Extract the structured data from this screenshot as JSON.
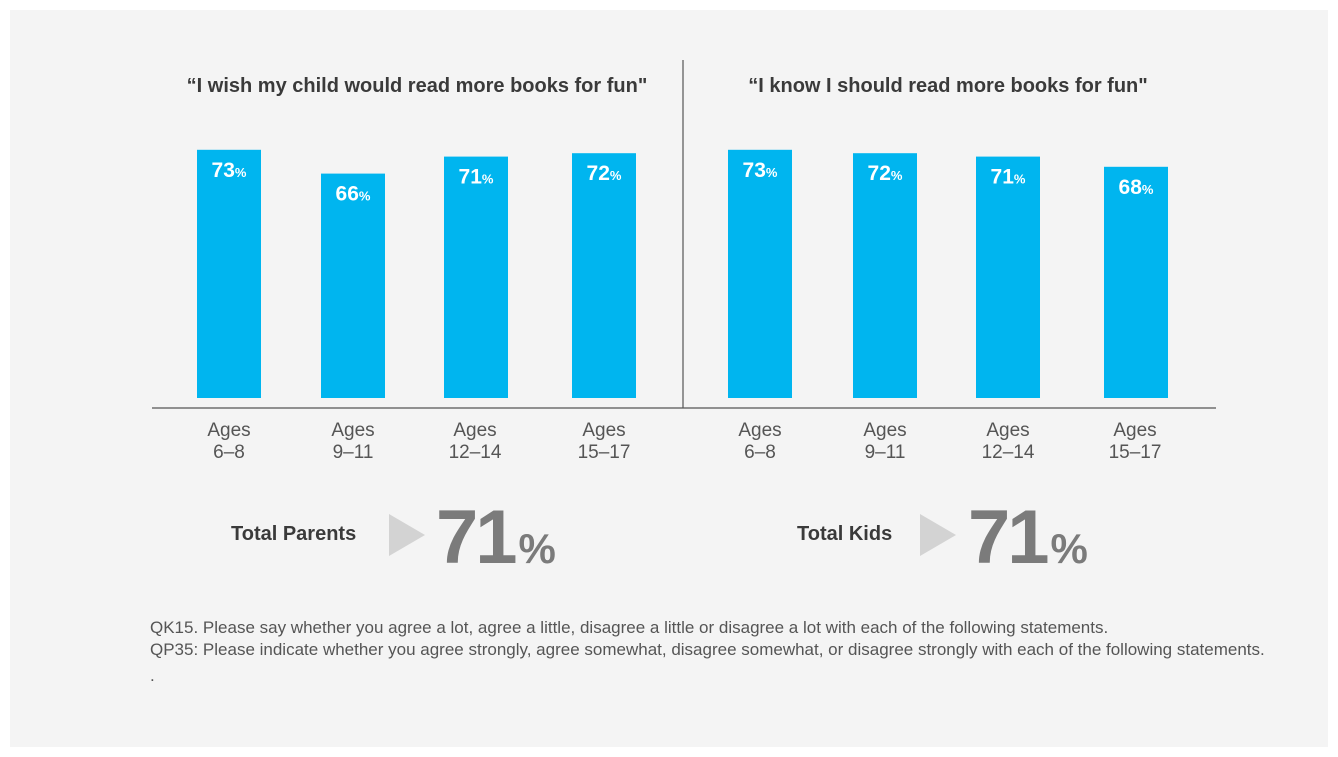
{
  "colors": {
    "bar": "#00b5ef",
    "bar_label": "#ffffff",
    "axis": "#555555",
    "arrow": "#d3d3d3",
    "panel_bg": "#f4f4f4"
  },
  "chart_data": [
    {
      "type": "bar",
      "title": "“I wish my child would read more books for fun\"",
      "categories": [
        "Ages 6–8",
        "Ages 9–11",
        "Ages 12–14",
        "Ages 15–17"
      ],
      "category_lines": [
        [
          "Ages",
          "6–8"
        ],
        [
          "Ages",
          "9–11"
        ],
        [
          "Ages",
          "12–14"
        ],
        [
          "Ages",
          "15–17"
        ]
      ],
      "values": [
        73,
        66,
        71,
        72
      ],
      "value_labels": [
        "73",
        "66",
        "71",
        "72"
      ],
      "unit": "%",
      "ylim": [
        0,
        100
      ],
      "xlabel": "",
      "ylabel": "",
      "grid": false
    },
    {
      "type": "bar",
      "title": "“I know I should read more books for fun\"",
      "categories": [
        "Ages 6–8",
        "Ages 9–11",
        "Ages 12–14",
        "Ages 15–17"
      ],
      "category_lines": [
        [
          "Ages",
          "6–8"
        ],
        [
          "Ages",
          "9–11"
        ],
        [
          "Ages",
          "12–14"
        ],
        [
          "Ages",
          "15–17"
        ]
      ],
      "values": [
        73,
        72,
        71,
        68
      ],
      "value_labels": [
        "73",
        "72",
        "71",
        "68"
      ],
      "unit": "%",
      "ylim": [
        0,
        100
      ],
      "xlabel": "",
      "ylabel": "",
      "grid": false
    }
  ],
  "totals": [
    {
      "label": "Total Parents",
      "value": "71",
      "unit": "%"
    },
    {
      "label": "Total Kids",
      "value": "71",
      "unit": "%"
    }
  ],
  "footnote": {
    "line1": "QK15. Please say whether you agree a lot, agree a little, disagree a little or disagree a lot with each of the following statements.",
    "line2": "QP35: Please indicate whether you agree strongly, agree somewhat, disagree somewhat, or disagree strongly with each of the following statements.",
    "line3": "."
  }
}
